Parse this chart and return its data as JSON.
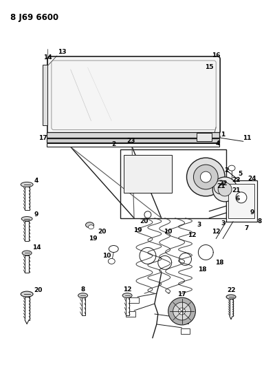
{
  "title": "8 J69 6600",
  "bg": "#ffffff",
  "lc": "#1a1a1a",
  "tc": "#000000",
  "fig_w": 4.0,
  "fig_h": 5.33,
  "dpi": 100
}
